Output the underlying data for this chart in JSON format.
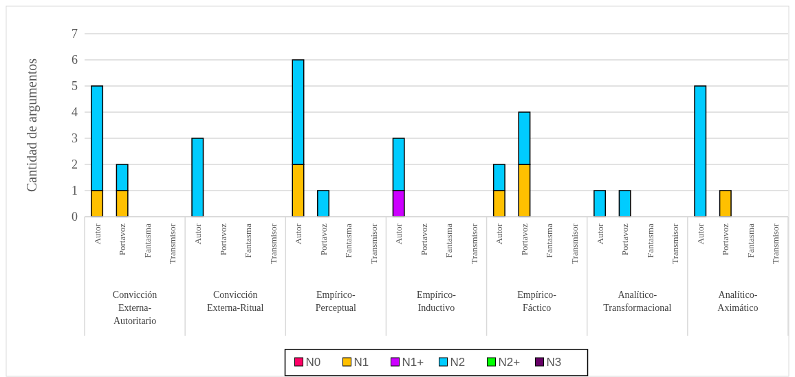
{
  "chart_data": {
    "type": "bar",
    "stacked": true,
    "ylabel": "Cantidad de argumentos",
    "ylim": [
      0,
      7
    ],
    "yticks": [
      0,
      1,
      2,
      3,
      4,
      5,
      6,
      7
    ],
    "grid": "y",
    "legend": "bottom",
    "categories": [
      "Autor",
      "Portavoz",
      "Fantasma",
      "Transmisor",
      "Autor",
      "Portavoz",
      "Fantasma",
      "Transmisor",
      "Autor",
      "Portavoz",
      "Fantasma",
      "Transmisor",
      "Autor",
      "Portavoz",
      "Fantasma",
      "Transmisor",
      "Autor",
      "Portavoz",
      "Fantasma",
      "Transmisor",
      "Autor",
      "Portavoz",
      "Fantasma",
      "Transmisor",
      "Autor",
      "Portavoz",
      "Fantasma",
      "Transmisor"
    ],
    "annotations": [
      "Convicción Externa-Autoritario",
      "Convicción Externa-Ritual",
      "Empírico-Perceptual",
      "Empírico-Inductivo",
      "Empírico-Fáctico",
      "Analítico-Transformacional",
      "Analítico-Aximático"
    ],
    "series": [
      {
        "name": "N0",
        "color": "#ff0066",
        "values": [
          0,
          0,
          0,
          0,
          0,
          0,
          0,
          0,
          0,
          0,
          0,
          0,
          0,
          0,
          0,
          0,
          0,
          0,
          0,
          0,
          0,
          0,
          0,
          0,
          0,
          0,
          0,
          0
        ]
      },
      {
        "name": "N1",
        "color": "#ffc000",
        "values": [
          1,
          1,
          0,
          0,
          0,
          0,
          0,
          0,
          2,
          0,
          0,
          0,
          0,
          0,
          0,
          0,
          1,
          2,
          0,
          0,
          0,
          0,
          0,
          0,
          0,
          1,
          0,
          0
        ]
      },
      {
        "name": "N1+",
        "color": "#cc00ff",
        "values": [
          0,
          0,
          0,
          0,
          0,
          0,
          0,
          0,
          0,
          0,
          0,
          0,
          1,
          0,
          0,
          0,
          0,
          0,
          0,
          0,
          0,
          0,
          0,
          0,
          0,
          0,
          0,
          0
        ]
      },
      {
        "name": "N2",
        "color": "#00ccff",
        "values": [
          4,
          1,
          0,
          0,
          3,
          0,
          0,
          0,
          4,
          1,
          0,
          0,
          2,
          0,
          0,
          0,
          1,
          2,
          0,
          0,
          1,
          1,
          0,
          0,
          5,
          0,
          0,
          0
        ]
      },
      {
        "name": "N2+",
        "color": "#00ff00",
        "values": [
          0,
          0,
          0,
          0,
          0,
          0,
          0,
          0,
          0,
          0,
          0,
          0,
          0,
          0,
          0,
          0,
          0,
          0,
          0,
          0,
          0,
          0,
          0,
          0,
          0,
          0,
          0,
          0
        ]
      },
      {
        "name": "N3",
        "color": "#660066",
        "values": [
          0,
          0,
          0,
          0,
          0,
          0,
          0,
          0,
          0,
          0,
          0,
          0,
          0,
          0,
          0,
          0,
          0,
          0,
          0,
          0,
          0,
          0,
          0,
          0,
          0,
          0,
          0,
          0
        ]
      }
    ]
  }
}
